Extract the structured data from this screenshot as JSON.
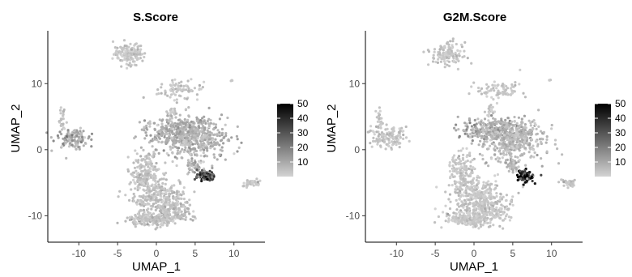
{
  "chart_data": [
    {
      "type": "scatter",
      "title": "S.Score",
      "xlabel": "UMAP_1",
      "ylabel": "UMAP_2",
      "xlim": [
        -14,
        14
      ],
      "ylim": [
        -14,
        18
      ],
      "x_ticks": [
        -10,
        -5,
        0,
        5,
        10
      ],
      "y_ticks": [
        -10,
        0,
        10
      ],
      "grid": false,
      "legend": {
        "position": "right",
        "type": "colorbar",
        "min": 0,
        "max": 50,
        "ticks": [
          10,
          20,
          30,
          40,
          50
        ],
        "color_low": "#d3d3d3",
        "color_high": "#000000"
      },
      "clusters": [
        {
          "cx": -3.5,
          "cy": 14.5,
          "rx": 1.8,
          "ry": 1.5,
          "level": 3,
          "n": 140
        },
        {
          "cx": 3.2,
          "cy": 9.0,
          "rx": 2.6,
          "ry": 1.3,
          "level": 3,
          "n": 80
        },
        {
          "cx": 2.0,
          "cy": 5.8,
          "rx": 0.6,
          "ry": 0.9,
          "level": 3,
          "n": 20
        },
        {
          "cx": 9.7,
          "cy": 10.5,
          "rx": 0.15,
          "ry": 0.15,
          "level": 3,
          "n": 3
        },
        {
          "cx": -12.2,
          "cy": 4.5,
          "rx": 0.35,
          "ry": 1.8,
          "level": 4,
          "n": 25
        },
        {
          "cx": -11.0,
          "cy": 1.8,
          "rx": 2.0,
          "ry": 1.4,
          "level": 10,
          "n": 120
        },
        {
          "cx": 2.5,
          "cy": 3.0,
          "rx": 3.8,
          "ry": 1.6,
          "level": 8,
          "n": 260
        },
        {
          "cx": 5.0,
          "cy": 1.5,
          "rx": 3.8,
          "ry": 3.0,
          "level": 7,
          "n": 420
        },
        {
          "cx": 5.0,
          "cy": -2.5,
          "rx": 0.9,
          "ry": 0.7,
          "level": 8,
          "n": 40
        },
        {
          "cx": 6.5,
          "cy": -4.0,
          "rx": 1.1,
          "ry": 0.8,
          "level": 32,
          "n": 90
        },
        {
          "cx": 12.2,
          "cy": -5.0,
          "rx": 1.0,
          "ry": 0.6,
          "level": 4,
          "n": 40
        },
        {
          "cx": -1.5,
          "cy": -3.5,
          "rx": 1.6,
          "ry": 2.8,
          "level": 4,
          "n": 160
        },
        {
          "cx": 0.5,
          "cy": -7.5,
          "rx": 3.2,
          "ry": 2.8,
          "level": 4,
          "n": 350
        },
        {
          "cx": 2.5,
          "cy": -9.5,
          "rx": 2.0,
          "ry": 1.2,
          "level": 5,
          "n": 80
        },
        {
          "cx": -0.5,
          "cy": -10.6,
          "rx": 3.0,
          "ry": 0.8,
          "level": 4,
          "n": 200
        }
      ]
    },
    {
      "type": "scatter",
      "title": "G2M.Score",
      "xlabel": "UMAP_1",
      "ylabel": "UMAP_2",
      "xlim": [
        -14,
        14
      ],
      "ylim": [
        -14,
        18
      ],
      "x_ticks": [
        -10,
        -5,
        0,
        5,
        10
      ],
      "y_ticks": [
        -10,
        0,
        10
      ],
      "grid": false,
      "legend": {
        "position": "right",
        "type": "colorbar",
        "min": 0,
        "max": 50,
        "ticks": [
          10,
          20,
          30,
          40,
          50
        ],
        "color_low": "#d3d3d3",
        "color_high": "#000000"
      },
      "clusters": [
        {
          "cx": -3.5,
          "cy": 14.5,
          "rx": 1.8,
          "ry": 1.5,
          "level": 3,
          "n": 140
        },
        {
          "cx": 3.2,
          "cy": 9.0,
          "rx": 2.6,
          "ry": 1.3,
          "level": 3,
          "n": 80
        },
        {
          "cx": 2.0,
          "cy": 5.8,
          "rx": 0.6,
          "ry": 0.9,
          "level": 3,
          "n": 20
        },
        {
          "cx": 9.7,
          "cy": 10.5,
          "rx": 0.15,
          "ry": 0.15,
          "level": 3,
          "n": 3
        },
        {
          "cx": -12.2,
          "cy": 4.5,
          "rx": 0.35,
          "ry": 1.8,
          "level": 3,
          "n": 25
        },
        {
          "cx": -11.0,
          "cy": 1.8,
          "rx": 2.0,
          "ry": 1.4,
          "level": 3,
          "n": 120
        },
        {
          "cx": 2.5,
          "cy": 3.0,
          "rx": 3.8,
          "ry": 1.6,
          "level": 10,
          "n": 260
        },
        {
          "cx": 5.0,
          "cy": 1.5,
          "rx": 3.8,
          "ry": 3.0,
          "level": 6,
          "n": 420
        },
        {
          "cx": 5.0,
          "cy": -2.5,
          "rx": 0.9,
          "ry": 0.7,
          "level": 6,
          "n": 40
        },
        {
          "cx": 6.5,
          "cy": -4.0,
          "rx": 1.1,
          "ry": 0.8,
          "level": 38,
          "n": 90
        },
        {
          "cx": 12.2,
          "cy": -5.0,
          "rx": 1.0,
          "ry": 0.6,
          "level": 3,
          "n": 40
        },
        {
          "cx": -1.5,
          "cy": -3.5,
          "rx": 1.6,
          "ry": 2.8,
          "level": 3,
          "n": 160
        },
        {
          "cx": 0.5,
          "cy": -7.5,
          "rx": 3.2,
          "ry": 2.8,
          "level": 3,
          "n": 350
        },
        {
          "cx": 2.5,
          "cy": -9.5,
          "rx": 2.0,
          "ry": 1.2,
          "level": 3,
          "n": 80
        },
        {
          "cx": -0.5,
          "cy": -10.6,
          "rx": 3.0,
          "ry": 0.8,
          "level": 3,
          "n": 200
        }
      ]
    }
  ]
}
